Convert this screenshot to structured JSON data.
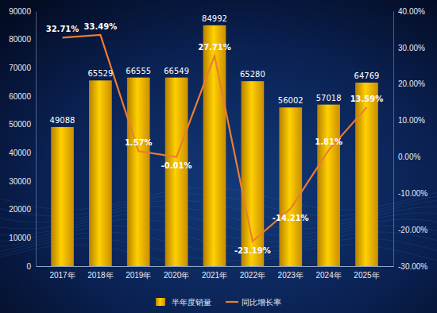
{
  "chart_data": {
    "type": "bar",
    "categories": [
      "2017年",
      "2018年",
      "2019年",
      "2020年",
      "2021年",
      "2022年",
      "2023年",
      "2024年",
      "2025年"
    ],
    "series": [
      {
        "name": "半年度销量",
        "type": "bar",
        "color": "#f2a900",
        "values": [
          49088,
          65529,
          66555,
          66549,
          84992,
          65280,
          56002,
          57018,
          64769
        ]
      },
      {
        "name": "同比增长率",
        "type": "line",
        "color": "#ed7d31",
        "axis": "y2",
        "values": [
          32.71,
          33.49,
          1.57,
          -0.01,
          27.71,
          -23.19,
          -14.21,
          1.81,
          13.59
        ],
        "value_labels": [
          "32.71%",
          "33.49%",
          "1.57%",
          "-0.01%",
          "27.71%",
          "-23.19%",
          "-14.21%",
          "1.81%",
          "13.59%"
        ]
      }
    ],
    "ylim": [
      0,
      90000
    ],
    "yticks": [
      0,
      10000,
      20000,
      30000,
      40000,
      50000,
      60000,
      70000,
      80000,
      90000
    ],
    "y2lim": [
      -30,
      40
    ],
    "y2ticks": [
      {
        "value": -30,
        "label": "-30.00%"
      },
      {
        "value": -20,
        "label": "-20.00%"
      },
      {
        "value": -10,
        "label": "-10.00%"
      },
      {
        "value": 0,
        "label": "0.00%"
      },
      {
        "value": 10,
        "label": "10.00%"
      },
      {
        "value": 20,
        "label": "20.00%"
      },
      {
        "value": 30,
        "label": "30.00%"
      },
      {
        "value": 40,
        "label": "40.00%"
      }
    ],
    "data_labels": true,
    "legend": "bottom"
  }
}
